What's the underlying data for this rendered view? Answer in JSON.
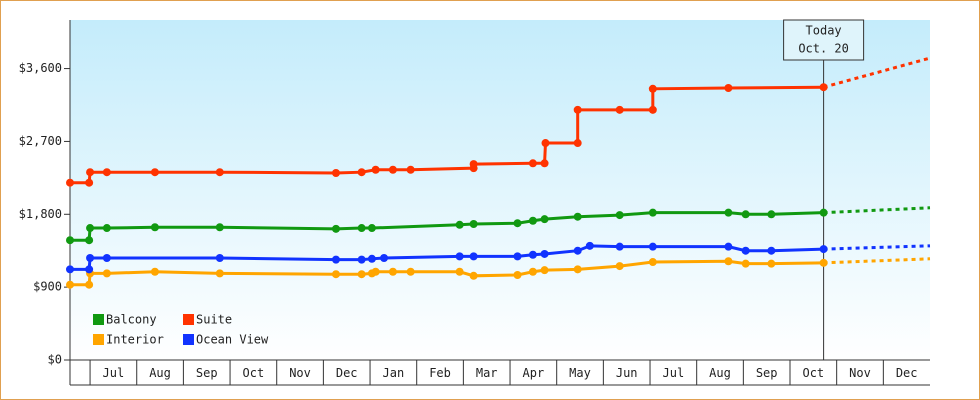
{
  "chart_data": {
    "type": "line",
    "xlim": [
      -0.43,
      18
    ],
    "ylim": [
      0,
      4200
    ],
    "xticks": [
      {
        "value": 0.5,
        "label": "Jul"
      },
      {
        "value": 1.5,
        "label": "Aug"
      },
      {
        "value": 2.5,
        "label": "Sep"
      },
      {
        "value": 3.5,
        "label": "Oct"
      },
      {
        "value": 4.5,
        "label": "Nov"
      },
      {
        "value": 5.5,
        "label": "Dec"
      },
      {
        "value": 6.5,
        "label": "Jan"
      },
      {
        "value": 7.5,
        "label": "Feb"
      },
      {
        "value": 8.5,
        "label": "Mar"
      },
      {
        "value": 9.5,
        "label": "Apr"
      },
      {
        "value": 10.5,
        "label": "May"
      },
      {
        "value": 11.5,
        "label": "Jun"
      },
      {
        "value": 12.5,
        "label": "Jul"
      },
      {
        "value": 13.5,
        "label": "Aug"
      },
      {
        "value": 14.5,
        "label": "Sep"
      },
      {
        "value": 15.5,
        "label": "Oct"
      },
      {
        "value": 16.5,
        "label": "Nov"
      },
      {
        "value": 17.5,
        "label": "Dec"
      }
    ],
    "yticks": [
      {
        "value": 0,
        "label": "$0"
      },
      {
        "value": 900,
        "label": "$900"
      },
      {
        "value": 1800,
        "label": "$1,800"
      },
      {
        "value": 2700,
        "label": "$2,700"
      },
      {
        "value": 3600,
        "label": "$3,600"
      }
    ],
    "today": {
      "x": 15.72,
      "label": [
        "Today",
        "Oct. 20"
      ]
    },
    "series": [
      {
        "name": "Balcony",
        "color": "#119911",
        "x": [
          -0.43,
          -0.02,
          0,
          0.36,
          1.39,
          2.78,
          5.27,
          5.82,
          6.04,
          7.92,
          8.22,
          9.16,
          9.49,
          9.74,
          10.45,
          11.35,
          12.06,
          13.68,
          14.05,
          14.6,
          15.72
        ],
        "values": [
          1480,
          1480,
          1630,
          1630,
          1640,
          1640,
          1620,
          1630,
          1630,
          1670,
          1680,
          1690,
          1720,
          1740,
          1770,
          1790,
          1820,
          1820,
          1800,
          1800,
          1820
        ],
        "forecast_x": [
          15.72,
          18
        ],
        "forecast_values": [
          1820,
          1880
        ]
      },
      {
        "name": "Suite",
        "color": "#ff3300",
        "x": [
          -0.43,
          -0.02,
          0,
          0.36,
          1.39,
          2.78,
          5.27,
          5.82,
          6.12,
          6.49,
          6.87,
          8.22,
          8.22,
          9.49,
          9.74,
          9.76,
          10.45,
          10.45,
          11.35,
          12.06,
          12.06,
          13.68,
          15.72
        ],
        "values": [
          2190,
          2190,
          2320,
          2320,
          2320,
          2320,
          2310,
          2320,
          2350,
          2350,
          2350,
          2370,
          2420,
          2430,
          2430,
          2680,
          2680,
          3090,
          3090,
          3090,
          3350,
          3360,
          3370
        ],
        "forecast_x": [
          15.72,
          18
        ],
        "forecast_values": [
          3370,
          3730
        ]
      },
      {
        "name": "Interior",
        "color": "#ffa500",
        "x": [
          -0.43,
          -0.02,
          0,
          0.36,
          1.39,
          2.78,
          5.27,
          5.82,
          6.04,
          6.12,
          6.49,
          6.87,
          7.92,
          8.22,
          9.16,
          9.49,
          9.74,
          10.45,
          11.35,
          12.06,
          13.68,
          14.05,
          14.6,
          15.72
        ],
        "values": [
          930,
          930,
          1070,
          1070,
          1090,
          1070,
          1060,
          1060,
          1070,
          1090,
          1090,
          1090,
          1090,
          1040,
          1050,
          1090,
          1110,
          1120,
          1160,
          1210,
          1220,
          1190,
          1190,
          1200
        ],
        "forecast_x": [
          15.72,
          18
        ],
        "forecast_values": [
          1200,
          1250
        ]
      },
      {
        "name": "Ocean View",
        "color": "#1133ff",
        "x": [
          -0.43,
          -0.02,
          0,
          0.36,
          2.78,
          5.27,
          5.82,
          6.04,
          6.3,
          7.92,
          8.22,
          9.16,
          9.49,
          9.74,
          10.45,
          10.71,
          11.35,
          12.06,
          13.68,
          14.05,
          14.6,
          15.72
        ],
        "values": [
          1120,
          1120,
          1260,
          1260,
          1260,
          1240,
          1240,
          1250,
          1260,
          1280,
          1280,
          1280,
          1300,
          1310,
          1350,
          1410,
          1400,
          1400,
          1400,
          1350,
          1350,
          1370
        ],
        "forecast_x": [
          15.72,
          18
        ],
        "forecast_values": [
          1370,
          1410
        ]
      }
    ]
  }
}
